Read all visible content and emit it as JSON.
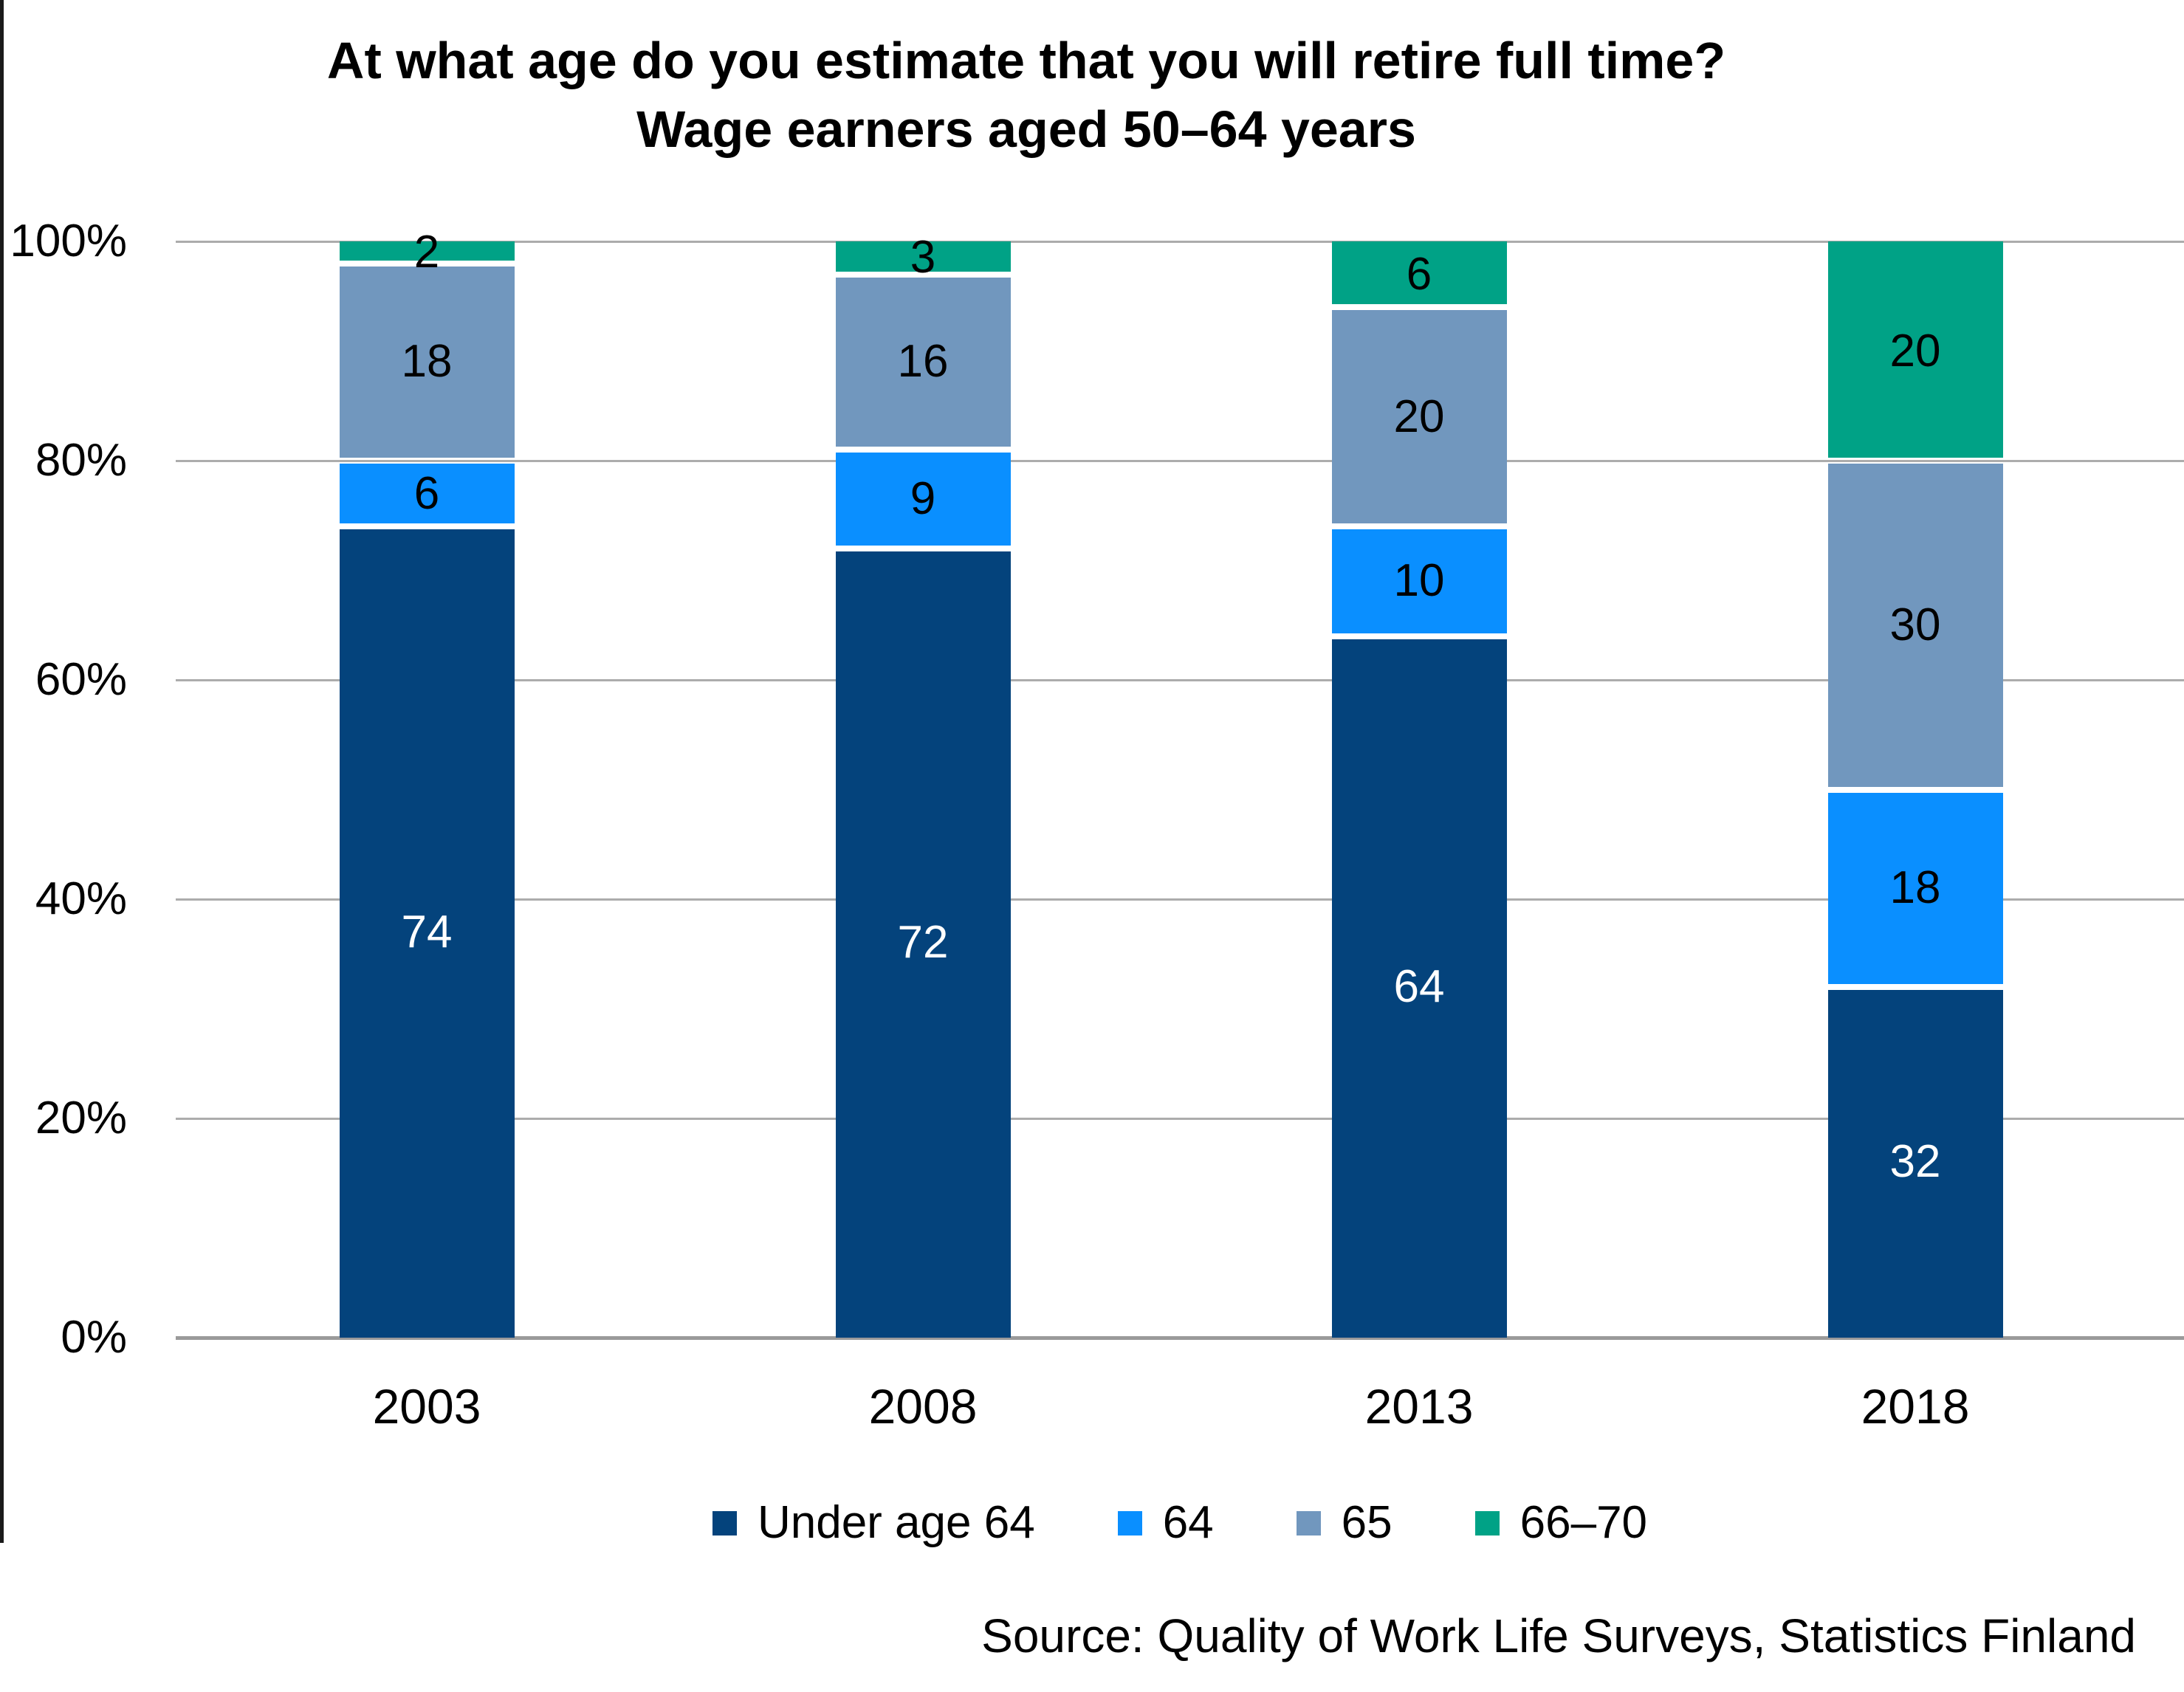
{
  "chart_data": {
    "type": "bar",
    "stacked": true,
    "percent_stacked": true,
    "title": "At what age do you estimate that you will retire full time?",
    "subtitle": "Wage earners aged 50–64 years",
    "categories": [
      "2003",
      "2008",
      "2013",
      "2018"
    ],
    "series": [
      {
        "name": "Under age 64",
        "color": "#04437C",
        "label_color": "#FFFFFF",
        "values": [
          74,
          72,
          64,
          32
        ]
      },
      {
        "name": "64",
        "color": "#0A8FFF",
        "label_color": "#000000",
        "values": [
          6,
          9,
          10,
          18
        ]
      },
      {
        "name": "65",
        "color": "#7197BE",
        "label_color": "#000000",
        "values": [
          18,
          16,
          20,
          30
        ]
      },
      {
        "name": "66–70",
        "color": "#00A286",
        "label_color": "#000000",
        "values": [
          2,
          3,
          6,
          20
        ]
      }
    ],
    "y_axis": {
      "min": 0,
      "max": 100,
      "unit": "%",
      "tick_labels": [
        "0%",
        "20%",
        "40%",
        "60%",
        "80%",
        "100%"
      ],
      "grid": true
    },
    "x_axis": {
      "tick_labels": [
        "2003",
        "2008",
        "2013",
        "2018"
      ]
    },
    "legend_position": "bottom",
    "source": "Source: Quality of Work Life Surveys, Statistics Finland",
    "colors": {
      "grid": "#ACACAC",
      "axis": "#9A9A9A",
      "text": "#000000",
      "background": "#FFFFFF"
    }
  }
}
